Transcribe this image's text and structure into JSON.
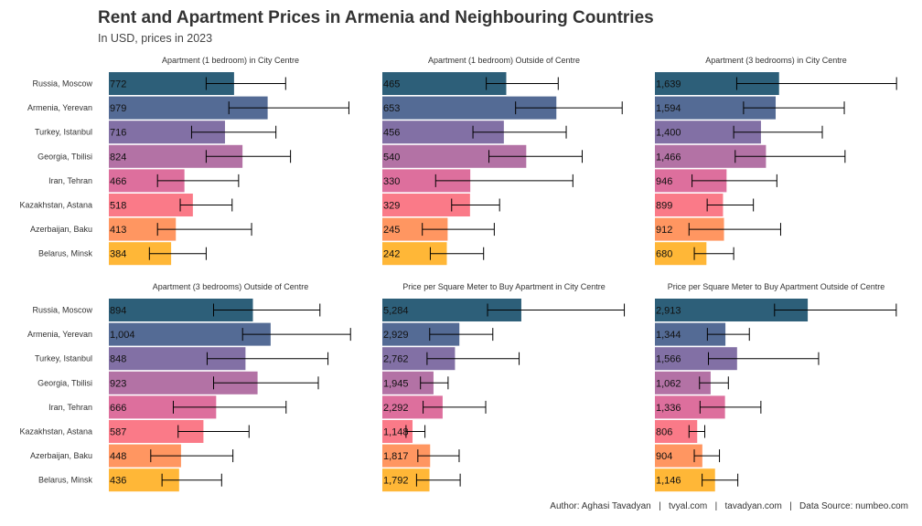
{
  "header": {
    "title": "Rent and Apartment Prices in Armenia and Neighbouring Countries",
    "subtitle": "In USD, prices in 2023"
  },
  "caption": "Author: Aghasi Tavadyan   |   tvyal.com   |   tavadyan.com   |   Data Source: numbeo.com",
  "colors": [
    "#2d5f79",
    "#546b95",
    "#8270a5",
    "#b372a5",
    "#dd6f9d",
    "#fa7a88",
    "#ff9661",
    "#ffb737"
  ],
  "chart_data": [
    {
      "type": "bar",
      "title": "Apartment (1 bedroom) in City Centre",
      "categories": [
        "Russia, Moscow",
        "Armenia, Yerevan",
        "Turkey, Istanbul",
        "Georgia, Tbilisi",
        "Iran, Tehran",
        "Kazakhstan, Astana",
        "Azerbaijan, Baku",
        "Belarus, Minsk"
      ],
      "values": [
        772,
        979,
        716,
        824,
        466,
        518,
        413,
        384
      ],
      "labels": [
        "772",
        "979",
        "716",
        "824",
        "466",
        "518",
        "413",
        "384"
      ],
      "error_low": [
        600,
        740,
        510,
        600,
        300,
        440,
        300,
        250
      ],
      "error_high": [
        1090,
        1480,
        1030,
        1120,
        800,
        760,
        880,
        600
      ],
      "xlim": [
        0,
        1500
      ]
    },
    {
      "type": "bar",
      "title": "Apartment (1 bedroom) Outside of Centre",
      "categories": [
        "Russia, Moscow",
        "Armenia, Yerevan",
        "Turkey, Istanbul",
        "Georgia, Tbilisi",
        "Iran, Tehran",
        "Kazakhstan, Astana",
        "Azerbaijan, Baku",
        "Belarus, Minsk"
      ],
      "values": [
        465,
        653,
        456,
        540,
        330,
        329,
        245,
        242
      ],
      "labels": [
        "465",
        "653",
        "456",
        "540",
        "330",
        "329",
        "245",
        "242"
      ],
      "error_low": [
        390,
        500,
        340,
        400,
        200,
        260,
        150,
        180
      ],
      "error_high": [
        660,
        900,
        690,
        750,
        715,
        440,
        420,
        380
      ],
      "xlim": [
        0,
        913
      ]
    },
    {
      "type": "bar",
      "title": "Apartment (3 bedrooms) in City Centre",
      "categories": [
        "Russia, Moscow",
        "Armenia, Yerevan",
        "Turkey, Istanbul",
        "Georgia, Tbilisi",
        "Iran, Tehran",
        "Kazakhstan, Astana",
        "Azerbaijan, Baku",
        "Belarus, Minsk"
      ],
      "values": [
        1639,
        1594,
        1400,
        1466,
        946,
        899,
        912,
        680
      ],
      "labels": [
        "1,639",
        "1,594",
        "1,400",
        "1,466",
        "946",
        "899",
        "912",
        "680"
      ],
      "error_low": [
        1080,
        1170,
        1040,
        1060,
        490,
        690,
        450,
        520
      ],
      "error_high": [
        3190,
        2500,
        2210,
        2510,
        1610,
        1300,
        1660,
        1040
      ],
      "xlim": [
        0,
        3200
      ]
    },
    {
      "type": "bar",
      "title": "Apartment (3 bedrooms) Outside of Centre",
      "categories": [
        "Russia, Moscow",
        "Armenia, Yerevan",
        "Turkey, Istanbul",
        "Georgia, Tbilisi",
        "Iran, Tehran",
        "Kazakhstan, Astana",
        "Azerbaijan, Baku",
        "Belarus, Minsk"
      ],
      "values": [
        894,
        1004,
        848,
        923,
        666,
        587,
        448,
        436
      ],
      "labels": [
        "894",
        "1,004",
        "848",
        "923",
        "666",
        "587",
        "448",
        "436"
      ],
      "error_low": [
        650,
        830,
        610,
        650,
        400,
        430,
        260,
        330
      ],
      "error_high": [
        1310,
        1500,
        1360,
        1300,
        1100,
        870,
        770,
        700
      ],
      "xlim": [
        0,
        1510
      ]
    },
    {
      "type": "bar",
      "title": "Price per Square Meter to Buy Apartment in City Centre",
      "categories": [
        "Russia, Moscow",
        "Armenia, Yerevan",
        "Turkey, Istanbul",
        "Georgia, Tbilisi",
        "Iran, Tehran",
        "Kazakhstan, Astana",
        "Azerbaijan, Baku",
        "Belarus, Minsk"
      ],
      "values": [
        5284,
        2929,
        2762,
        1945,
        2292,
        1148,
        1817,
        1792
      ],
      "labels": [
        "5,284",
        "2,929",
        "2,762",
        "1,945",
        "2,292",
        "1,148",
        "1,817",
        "1,792"
      ],
      "error_low": [
        4000,
        1800,
        1700,
        1450,
        1550,
        900,
        1350,
        1300
      ],
      "error_high": [
        9200,
        4200,
        5200,
        2500,
        3930,
        1620,
        2920,
        2960
      ],
      "xlim": [
        0,
        9250
      ]
    },
    {
      "type": "bar",
      "title": "Price per Square Meter to Buy Apartment Outside of Centre",
      "categories": [
        "Russia, Moscow",
        "Armenia, Yerevan",
        "Turkey, Istanbul",
        "Georgia, Tbilisi",
        "Iran, Tehran",
        "Kazakhstan, Astana",
        "Azerbaijan, Baku",
        "Belarus, Minsk"
      ],
      "values": [
        2913,
        1344,
        1566,
        1062,
        1336,
        806,
        904,
        1146
      ],
      "labels": [
        "2,913",
        "1,344",
        "1,566",
        "1,062",
        "1,336",
        "806",
        "904",
        "1,146"
      ],
      "error_low": [
        2280,
        1000,
        1020,
        850,
        860,
        650,
        750,
        900
      ],
      "error_high": [
        4600,
        1800,
        3120,
        1400,
        2020,
        950,
        1230,
        1580
      ],
      "xlim": [
        0,
        4620
      ]
    }
  ]
}
